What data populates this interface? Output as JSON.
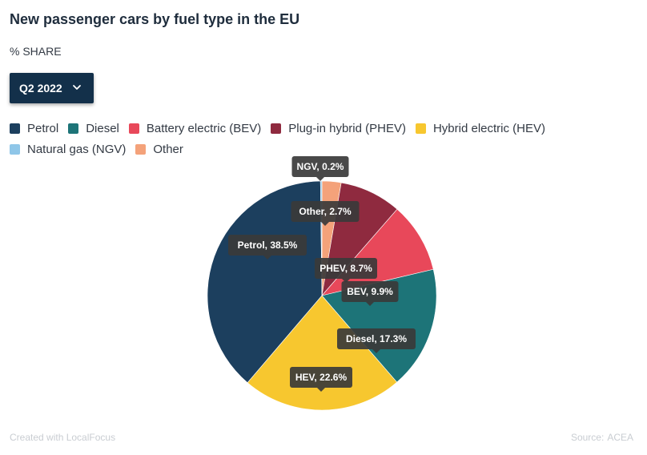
{
  "header": {
    "title": "New passenger cars by fuel type in the EU",
    "subtitle": "% SHARE"
  },
  "selector": {
    "value": "Q2 2022"
  },
  "legend": [
    {
      "label": "Petrol",
      "color": "#1c3f5e"
    },
    {
      "label": "Diesel",
      "color": "#1d7478"
    },
    {
      "label": "Battery electric (BEV)",
      "color": "#e8485a"
    },
    {
      "label": "Plug-in hybrid (PHEV)",
      "color": "#8f2a3f"
    },
    {
      "label": "Hybrid electric (HEV)",
      "color": "#f7c72f"
    },
    {
      "label": "Natural gas (NGV)",
      "color": "#8fc6e8"
    },
    {
      "label": "Other",
      "color": "#f4a27a"
    }
  ],
  "chart_data": {
    "type": "pie",
    "title": "New passenger cars by fuel type in the EU",
    "subtitle": "% SHARE",
    "slices": [
      {
        "name": "Other",
        "label": "Other, 2.7%",
        "value": 2.7,
        "color": "#f4a27a"
      },
      {
        "name": "PHEV",
        "label": "PHEV, 8.7%",
        "value": 8.7,
        "color": "#8f2a3f"
      },
      {
        "name": "BEV",
        "label": "BEV, 9.9%",
        "value": 9.9,
        "color": "#e8485a"
      },
      {
        "name": "Diesel",
        "label": "Diesel, 17.3%",
        "value": 17.3,
        "color": "#1d7478"
      },
      {
        "name": "HEV",
        "label": "HEV, 22.6%",
        "value": 22.6,
        "color": "#f7c72f"
      },
      {
        "name": "Petrol",
        "label": "Petrol, 38.5%",
        "value": 38.5,
        "color": "#1c3f5e"
      },
      {
        "name": "NGV",
        "label": "NGV, 0.2%",
        "value": 0.2,
        "color": "#8fc6e8"
      }
    ]
  },
  "footer": {
    "credit": "Created with LocalFocus",
    "source_label": "Source:",
    "source": "ACEA"
  }
}
